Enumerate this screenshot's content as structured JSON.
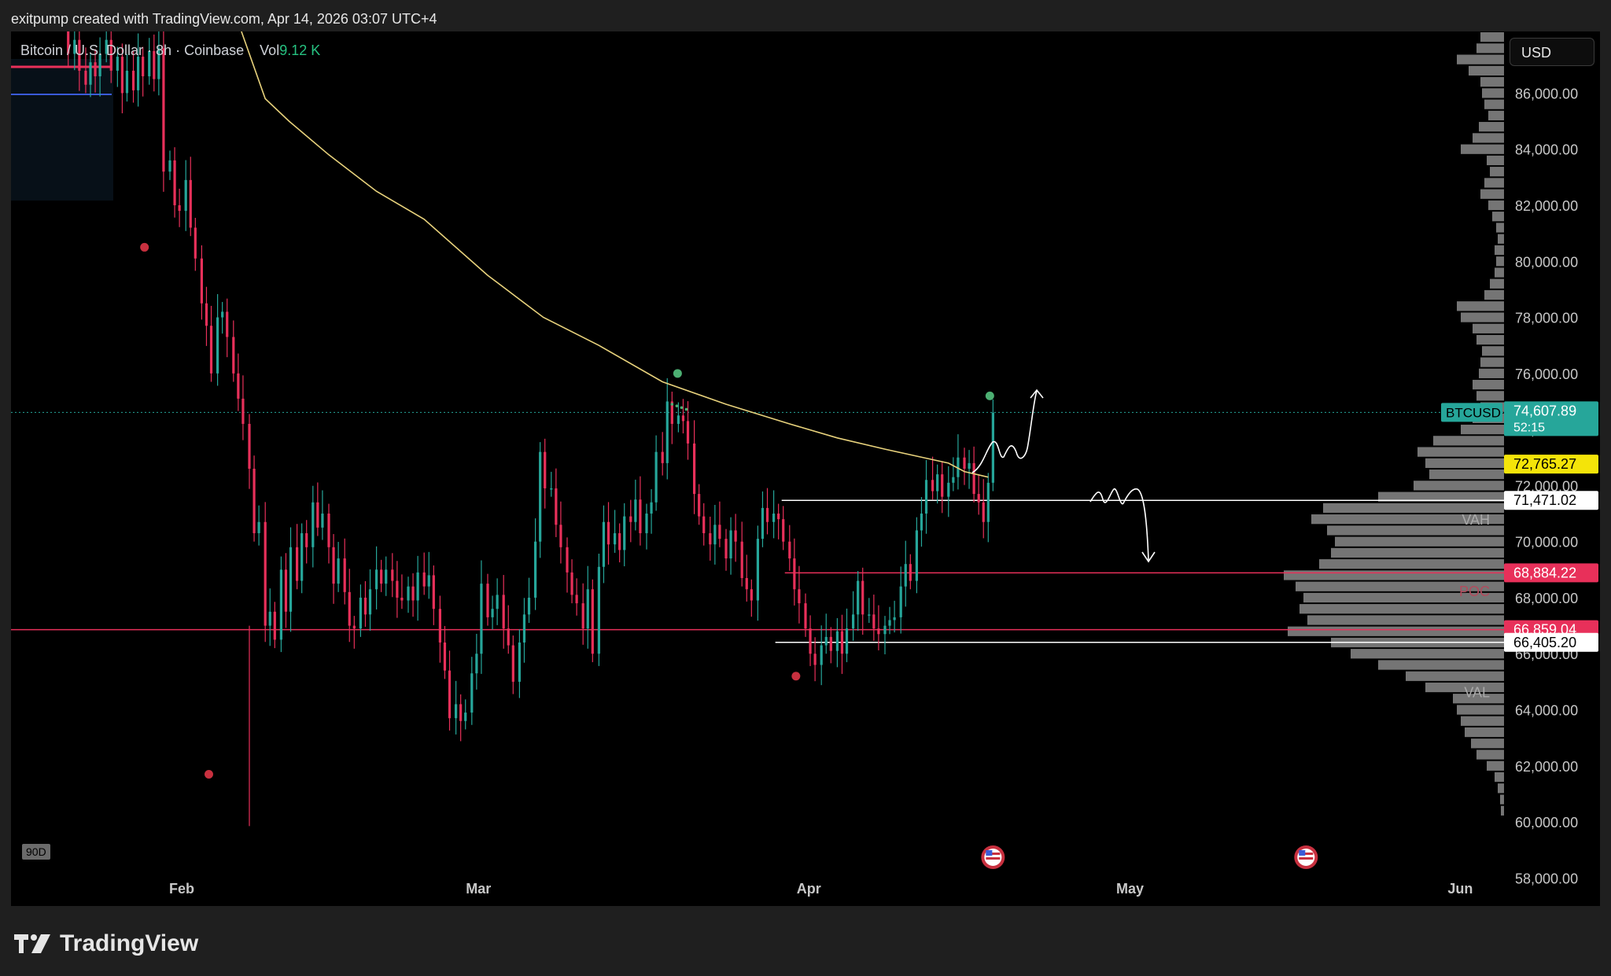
{
  "header": {
    "text": "exitpump created with TradingView.com, Apr 14, 2026 03:07 UTC+4"
  },
  "legend": {
    "symbol_text": "Bitcoin / U.S. Dollar · 8h · Coinbase",
    "vol_label": "Vol",
    "vol_value": "9.12 K"
  },
  "currency_button": {
    "label": "USD"
  },
  "period_tag": {
    "label": "90D"
  },
  "footer": {
    "brand": "TradingView"
  },
  "colors": {
    "up": "#26a69a",
    "down": "#e8305a",
    "ma": "#e8d27c",
    "bg": "#000000",
    "level_red": "#e8305a",
    "level_white": "#ffffff",
    "profile": "#8a8a8a"
  },
  "chart_data": {
    "type": "candlestick",
    "symbol": "BTCUSD",
    "interval": "8h",
    "exchange": "Coinbase",
    "x_labels": [
      "Feb",
      "Mar",
      "Apr",
      "May",
      "Jun"
    ],
    "y_ticks": [
      "58,000.00",
      "60,000.00",
      "62,000.00",
      "64,000.00",
      "66,000.00",
      "68,000.00",
      "70,000.00",
      "72,000.00",
      "74,000.00",
      "76,000.00",
      "78,000.00",
      "80,000.00",
      "82,000.00",
      "84,000.00",
      "86,000.00"
    ],
    "ylim": [
      57000,
      88200
    ],
    "price_tags": [
      {
        "label": "BTCUSD",
        "value": "74,607.89",
        "sub": "52:15",
        "price": 74607.89,
        "color": "#26a69a",
        "text_color": "#ffffff"
      },
      {
        "value": "72,765.27",
        "price": 72765.27,
        "color": "#f4e409",
        "text_color": "#000000"
      },
      {
        "value": "71,471.02",
        "price": 71471.02,
        "color": "#ffffff",
        "text_color": "#000000"
      },
      {
        "value": "68,884.22",
        "price": 68884.22,
        "color": "#e8305a",
        "text_color": "#ffffff"
      },
      {
        "value": "66,859.04",
        "price": 66859.04,
        "color": "#e8305a",
        "text_color": "#ffffff"
      },
      {
        "value": "66,405.20",
        "price": 66405.2,
        "color": "#ffffff",
        "text_color": "#000000"
      }
    ],
    "profile_labels": [
      {
        "label": "VAH",
        "price": 70800
      },
      {
        "label": "POC",
        "price": 68250
      },
      {
        "label": "VAL",
        "price": 64650
      }
    ],
    "levels": [
      {
        "name": "VAH",
        "price": 71471.02,
        "color": "#ffffff",
        "x_from": 0.485
      },
      {
        "name": "POC",
        "price": 68884.22,
        "color": "#e8305a",
        "x_from": 0.487
      },
      {
        "name": "support",
        "price": 66859.04,
        "color": "#e8305a",
        "x_from": 0
      },
      {
        "name": "VAL",
        "price": 66405.2,
        "color": "#ffffff",
        "x_from": 0.481
      }
    ],
    "last_price": 74607.89,
    "ma_path": [
      [
        0.145,
        88200
      ],
      [
        0.16,
        85800
      ],
      [
        0.175,
        85000
      ],
      [
        0.2,
        83800
      ],
      [
        0.23,
        82500
      ],
      [
        0.26,
        81500
      ],
      [
        0.3,
        79500
      ],
      [
        0.335,
        78000
      ],
      [
        0.37,
        77000
      ],
      [
        0.41,
        75700
      ],
      [
        0.45,
        74900
      ],
      [
        0.49,
        74200
      ],
      [
        0.52,
        73700
      ],
      [
        0.55,
        73300
      ],
      [
        0.57,
        73050
      ],
      [
        0.59,
        72800
      ],
      [
        0.6,
        72500
      ],
      [
        0.615,
        72300
      ]
    ],
    "candle_path": [
      [
        0.033,
        89500
      ],
      [
        0.036,
        87400
      ],
      [
        0.04,
        87900
      ],
      [
        0.043,
        86800
      ],
      [
        0.047,
        86300
      ],
      [
        0.05,
        87100
      ],
      [
        0.053,
        86600
      ],
      [
        0.056,
        87400
      ],
      [
        0.06,
        87900
      ],
      [
        0.063,
        86800
      ],
      [
        0.067,
        87300
      ],
      [
        0.07,
        86000
      ],
      [
        0.073,
        86800
      ],
      [
        0.077,
        86100
      ],
      [
        0.08,
        87300
      ],
      [
        0.083,
        86600
      ],
      [
        0.087,
        87500
      ],
      [
        0.09,
        86500
      ],
      [
        0.093,
        87600
      ],
      [
        0.096,
        83200
      ],
      [
        0.1,
        83600
      ],
      [
        0.103,
        82000
      ],
      [
        0.106,
        81800
      ],
      [
        0.11,
        82900
      ],
      [
        0.113,
        81200
      ],
      [
        0.116,
        80100
      ],
      [
        0.12,
        78500
      ],
      [
        0.123,
        77700
      ],
      [
        0.126,
        76000
      ],
      [
        0.13,
        78000
      ],
      [
        0.133,
        78200
      ],
      [
        0.136,
        77300
      ],
      [
        0.14,
        76000
      ],
      [
        0.143,
        75100
      ],
      [
        0.146,
        74200
      ],
      [
        0.15,
        72600
      ],
      [
        0.153,
        70300
      ],
      [
        0.156,
        70700
      ],
      [
        0.16,
        67000
      ],
      [
        0.163,
        67500
      ],
      [
        0.166,
        66500
      ],
      [
        0.17,
        69000
      ],
      [
        0.173,
        67500
      ],
      [
        0.176,
        69800
      ],
      [
        0.18,
        68600
      ],
      [
        0.183,
        70300
      ],
      [
        0.186,
        69800
      ],
      [
        0.19,
        71400
      ],
      [
        0.193,
        70500
      ],
      [
        0.196,
        71000
      ],
      [
        0.2,
        69800
      ],
      [
        0.203,
        68500
      ],
      [
        0.206,
        69400
      ],
      [
        0.21,
        68200
      ],
      [
        0.213,
        67000
      ],
      [
        0.216,
        66900
      ],
      [
        0.22,
        68000
      ],
      [
        0.223,
        67400
      ],
      [
        0.226,
        68300
      ],
      [
        0.23,
        69000
      ],
      [
        0.233,
        68500
      ],
      [
        0.236,
        69000
      ],
      [
        0.24,
        68600
      ],
      [
        0.243,
        68000
      ],
      [
        0.246,
        67900
      ],
      [
        0.25,
        68400
      ],
      [
        0.253,
        67900
      ],
      [
        0.256,
        68900
      ],
      [
        0.26,
        68400
      ],
      [
        0.263,
        68800
      ],
      [
        0.266,
        67600
      ],
      [
        0.27,
        66400
      ],
      [
        0.273,
        65400
      ],
      [
        0.276,
        63700
      ],
      [
        0.28,
        64200
      ],
      [
        0.283,
        63600
      ],
      [
        0.286,
        63900
      ],
      [
        0.29,
        65300
      ],
      [
        0.293,
        66000
      ],
      [
        0.296,
        68500
      ],
      [
        0.3,
        67300
      ],
      [
        0.303,
        67600
      ],
      [
        0.306,
        68100
      ],
      [
        0.31,
        66900
      ],
      [
        0.313,
        66300
      ],
      [
        0.316,
        65000
      ],
      [
        0.32,
        66400
      ],
      [
        0.323,
        67400
      ],
      [
        0.326,
        68000
      ],
      [
        0.33,
        70000
      ],
      [
        0.333,
        73200
      ],
      [
        0.336,
        71900
      ],
      [
        0.34,
        71900
      ],
      [
        0.343,
        70600
      ],
      [
        0.346,
        69800
      ],
      [
        0.35,
        68900
      ],
      [
        0.353,
        68100
      ],
      [
        0.356,
        67800
      ],
      [
        0.36,
        66900
      ],
      [
        0.363,
        68300
      ],
      [
        0.366,
        66000
      ],
      [
        0.37,
        69100
      ],
      [
        0.373,
        70700
      ],
      [
        0.376,
        69900
      ],
      [
        0.38,
        70300
      ],
      [
        0.383,
        69700
      ],
      [
        0.386,
        70900
      ],
      [
        0.39,
        70700
      ],
      [
        0.393,
        71500
      ],
      [
        0.396,
        70300
      ],
      [
        0.4,
        71000
      ],
      [
        0.403,
        71400
      ],
      [
        0.406,
        73200
      ],
      [
        0.41,
        72800
      ],
      [
        0.413,
        75000
      ],
      [
        0.416,
        74200
      ],
      [
        0.42,
        74500
      ],
      [
        0.423,
        74300
      ],
      [
        0.426,
        73500
      ],
      [
        0.43,
        71700
      ],
      [
        0.433,
        70900
      ],
      [
        0.436,
        70300
      ],
      [
        0.44,
        69900
      ],
      [
        0.443,
        70600
      ],
      [
        0.446,
        70100
      ],
      [
        0.45,
        69400
      ],
      [
        0.453,
        70400
      ],
      [
        0.456,
        70000
      ],
      [
        0.46,
        68700
      ],
      [
        0.463,
        68300
      ],
      [
        0.466,
        67900
      ],
      [
        0.47,
        70100
      ],
      [
        0.473,
        71200
      ],
      [
        0.476,
        70700
      ],
      [
        0.48,
        71000
      ],
      [
        0.483,
        70800
      ],
      [
        0.486,
        70000
      ],
      [
        0.49,
        69400
      ],
      [
        0.493,
        68300
      ],
      [
        0.496,
        67800
      ],
      [
        0.5,
        66900
      ],
      [
        0.503,
        66000
      ],
      [
        0.506,
        65600
      ],
      [
        0.51,
        66300
      ],
      [
        0.513,
        66600
      ],
      [
        0.516,
        66100
      ],
      [
        0.52,
        66800
      ],
      [
        0.523,
        66000
      ],
      [
        0.526,
        66900
      ],
      [
        0.53,
        67400
      ],
      [
        0.533,
        68600
      ],
      [
        0.536,
        67400
      ],
      [
        0.54,
        67400
      ],
      [
        0.543,
        66900
      ],
      [
        0.546,
        66700
      ],
      [
        0.55,
        67000
      ],
      [
        0.553,
        67200
      ],
      [
        0.556,
        67300
      ],
      [
        0.56,
        68400
      ],
      [
        0.563,
        69200
      ],
      [
        0.566,
        68600
      ],
      [
        0.57,
        70400
      ],
      [
        0.573,
        71000
      ],
      [
        0.576,
        72200
      ],
      [
        0.58,
        71800
      ],
      [
        0.583,
        72400
      ],
      [
        0.586,
        71600
      ],
      [
        0.59,
        72100
      ],
      [
        0.593,
        72300
      ],
      [
        0.596,
        73000
      ],
      [
        0.6,
        72600
      ],
      [
        0.603,
        72800
      ],
      [
        0.606,
        71700
      ],
      [
        0.609,
        71400
      ],
      [
        0.612,
        70700
      ],
      [
        0.615,
        72100
      ],
      [
        0.618,
        74600
      ]
    ],
    "volume_profile": [
      {
        "price": 88000,
        "len": 30
      },
      {
        "price": 87600,
        "len": 35
      },
      {
        "price": 87200,
        "len": 60
      },
      {
        "price": 86800,
        "len": 45
      },
      {
        "price": 86400,
        "len": 30
      },
      {
        "price": 86000,
        "len": 28
      },
      {
        "price": 85600,
        "len": 25
      },
      {
        "price": 85200,
        "len": 20
      },
      {
        "price": 84800,
        "len": 32
      },
      {
        "price": 84400,
        "len": 40
      },
      {
        "price": 84000,
        "len": 55
      },
      {
        "price": 83600,
        "len": 22
      },
      {
        "price": 83200,
        "len": 18
      },
      {
        "price": 82800,
        "len": 25
      },
      {
        "price": 82400,
        "len": 30
      },
      {
        "price": 82000,
        "len": 20
      },
      {
        "price": 81600,
        "len": 15
      },
      {
        "price": 81200,
        "len": 10
      },
      {
        "price": 80800,
        "len": 8
      },
      {
        "price": 80400,
        "len": 12
      },
      {
        "price": 80000,
        "len": 10
      },
      {
        "price": 79600,
        "len": 12
      },
      {
        "price": 79200,
        "len": 18
      },
      {
        "price": 78800,
        "len": 25
      },
      {
        "price": 78400,
        "len": 60
      },
      {
        "price": 78000,
        "len": 55
      },
      {
        "price": 77600,
        "len": 40
      },
      {
        "price": 77200,
        "len": 35
      },
      {
        "price": 76800,
        "len": 28
      },
      {
        "price": 76400,
        "len": 30
      },
      {
        "price": 76000,
        "len": 32
      },
      {
        "price": 75600,
        "len": 40
      },
      {
        "price": 75200,
        "len": 35
      },
      {
        "price": 74800,
        "len": 30
      },
      {
        "price": 74400,
        "len": 40
      },
      {
        "price": 74000,
        "len": 55
      },
      {
        "price": 73600,
        "len": 90
      },
      {
        "price": 73200,
        "len": 110
      },
      {
        "price": 72800,
        "len": 100
      },
      {
        "price": 72400,
        "len": 95
      },
      {
        "price": 72000,
        "len": 115
      },
      {
        "price": 71600,
        "len": 160
      },
      {
        "price": 71200,
        "len": 230
      },
      {
        "price": 70800,
        "len": 245
      },
      {
        "price": 70400,
        "len": 225
      },
      {
        "price": 70000,
        "len": 215
      },
      {
        "price": 69600,
        "len": 220
      },
      {
        "price": 69200,
        "len": 235
      },
      {
        "price": 68800,
        "len": 280
      },
      {
        "price": 68400,
        "len": 265
      },
      {
        "price": 68000,
        "len": 255
      },
      {
        "price": 67600,
        "len": 260
      },
      {
        "price": 67200,
        "len": 250
      },
      {
        "price": 66800,
        "len": 275
      },
      {
        "price": 66400,
        "len": 220
      },
      {
        "price": 66000,
        "len": 195
      },
      {
        "price": 65600,
        "len": 160
      },
      {
        "price": 65200,
        "len": 125
      },
      {
        "price": 64800,
        "len": 100
      },
      {
        "price": 64400,
        "len": 65
      },
      {
        "price": 64000,
        "len": 60
      },
      {
        "price": 63600,
        "len": 55
      },
      {
        "price": 63200,
        "len": 50
      },
      {
        "price": 62800,
        "len": 42
      },
      {
        "price": 62400,
        "len": 35
      },
      {
        "price": 62000,
        "len": 22
      },
      {
        "price": 61600,
        "len": 12
      },
      {
        "price": 61200,
        "len": 8
      },
      {
        "price": 60800,
        "len": 5
      },
      {
        "price": 60400,
        "len": 4
      }
    ],
    "pivot_markers": [
      {
        "x": 0.084,
        "price": 80500,
        "kind": "low"
      },
      {
        "x": 0.1245,
        "price": 61700,
        "kind": "low"
      },
      {
        "x": 0.4195,
        "price": 76000,
        "kind": "high"
      },
      {
        "x": 0.494,
        "price": 65200,
        "kind": "low"
      },
      {
        "x": 0.616,
        "price": 75200,
        "kind": "high"
      }
    ],
    "event_markers": [
      {
        "x": 0.618
      },
      {
        "x": 0.815
      }
    ]
  }
}
